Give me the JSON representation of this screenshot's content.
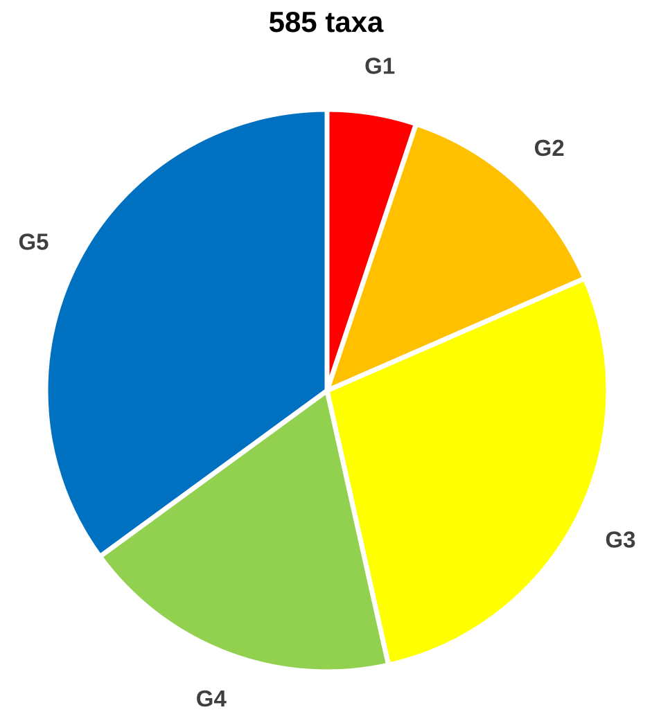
{
  "chart_data": {
    "type": "pie",
    "title": "585 taxa",
    "slices": [
      {
        "label": "G1",
        "value": 30,
        "color": "#FF0000"
      },
      {
        "label": "G2",
        "value": 78,
        "color": "#FFC000"
      },
      {
        "label": "G3",
        "value": 164,
        "color": "#FFFF00"
      },
      {
        "label": "G4",
        "value": 108,
        "color": "#92D050"
      },
      {
        "label": "G5",
        "value": 205,
        "color": "#0070C0"
      }
    ],
    "start_angle": "12 o'clock",
    "direction": "clockwise",
    "slice_border_color": "#FFFFFF",
    "legend": "none"
  }
}
